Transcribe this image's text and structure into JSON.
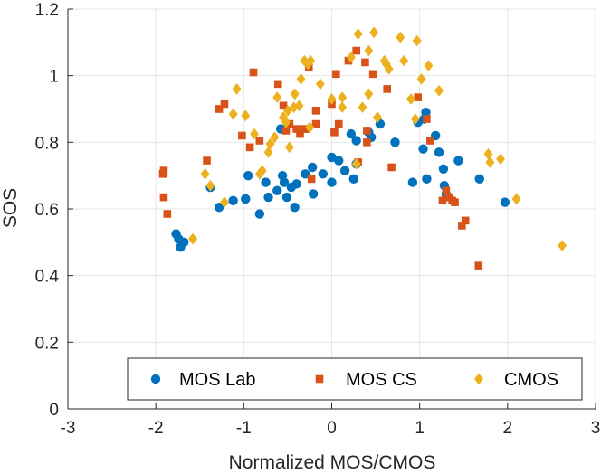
{
  "chart_data": {
    "type": "scatter",
    "title": "",
    "xlabel": "Normalized MOS/CMOS",
    "ylabel": "SOS",
    "xlim": [
      -3,
      3
    ],
    "ylim": [
      0,
      1.2
    ],
    "xticks": [
      -3,
      -2,
      -1,
      0,
      1,
      2,
      3
    ],
    "yticks": [
      0,
      0.2,
      0.4,
      0.6,
      0.8,
      1,
      1.2
    ],
    "xtick_labels": [
      "-3",
      "-2",
      "-1",
      "0",
      "1",
      "2",
      "3"
    ],
    "ytick_labels": [
      "0",
      "0.2",
      "0.4",
      "0.6",
      "0.8",
      "1",
      "1.2"
    ],
    "grid": true,
    "legend_position": "bottom",
    "series": [
      {
        "name": "MOS Lab",
        "marker": "circle",
        "color": "#0072BD",
        "points": [
          [
            -1.77,
            0.525
          ],
          [
            -1.74,
            0.51
          ],
          [
            -1.72,
            0.485
          ],
          [
            -1.68,
            0.5
          ],
          [
            -1.38,
            0.665
          ],
          [
            -1.28,
            0.605
          ],
          [
            -1.12,
            0.625
          ],
          [
            -0.98,
            0.63
          ],
          [
            -0.95,
            0.7
          ],
          [
            -0.82,
            0.585
          ],
          [
            -0.75,
            0.68
          ],
          [
            -0.72,
            0.635
          ],
          [
            -0.62,
            0.655
          ],
          [
            -0.56,
            0.7
          ],
          [
            -0.54,
            0.68
          ],
          [
            -0.51,
            0.635
          ],
          [
            -0.46,
            0.665
          ],
          [
            -0.42,
            0.605
          ],
          [
            -0.4,
            0.675
          ],
          [
            -0.3,
            0.705
          ],
          [
            -0.22,
            0.725
          ],
          [
            -0.21,
            0.645
          ],
          [
            -0.1,
            0.705
          ],
          [
            0.0,
            0.755
          ],
          [
            0.0,
            0.68
          ],
          [
            0.08,
            0.745
          ],
          [
            0.15,
            0.715
          ],
          [
            0.22,
            0.825
          ],
          [
            0.25,
            0.69
          ],
          [
            0.28,
            0.735
          ],
          [
            0.28,
            0.805
          ],
          [
            0.42,
            0.83
          ],
          [
            0.45,
            0.815
          ],
          [
            0.55,
            0.855
          ],
          [
            0.72,
            0.8
          ],
          [
            0.92,
            0.68
          ],
          [
            1.04,
            0.78
          ],
          [
            1.07,
            0.89
          ],
          [
            1.08,
            0.69
          ],
          [
            1.18,
            0.82
          ],
          [
            1.22,
            0.77
          ],
          [
            1.27,
            0.72
          ],
          [
            1.28,
            0.67
          ],
          [
            1.3,
            0.645
          ],
          [
            1.44,
            0.745
          ],
          [
            1.68,
            0.69
          ],
          [
            1.97,
            0.62
          ],
          [
            -0.58,
            0.84
          ],
          [
            0.98,
            0.86
          ],
          [
            1.05,
            0.87
          ]
        ]
      },
      {
        "name": "MOS CS",
        "marker": "square",
        "color": "#D95319",
        "points": [
          [
            -1.92,
            0.705
          ],
          [
            -1.91,
            0.715
          ],
          [
            -1.91,
            0.635
          ],
          [
            -1.87,
            0.585
          ],
          [
            -1.42,
            0.745
          ],
          [
            -1.28,
            0.9
          ],
          [
            -1.22,
            0.915
          ],
          [
            -1.02,
            0.82
          ],
          [
            -0.93,
            0.785
          ],
          [
            -0.89,
            1.01
          ],
          [
            -0.82,
            0.805
          ],
          [
            -0.61,
            0.975
          ],
          [
            -0.55,
            0.91
          ],
          [
            -0.52,
            0.835
          ],
          [
            -0.48,
            0.855
          ],
          [
            -0.36,
            0.825
          ],
          [
            -0.3,
            0.84
          ],
          [
            -0.26,
            1.025
          ],
          [
            -0.23,
            0.69
          ],
          [
            -0.18,
            0.855
          ],
          [
            -0.18,
            0.895
          ],
          [
            0.0,
            0.915
          ],
          [
            0.03,
            0.83
          ],
          [
            0.05,
            1.005
          ],
          [
            0.08,
            0.855
          ],
          [
            0.19,
            1.045
          ],
          [
            0.28,
            1.075
          ],
          [
            0.3,
            0.74
          ],
          [
            0.38,
            1.04
          ],
          [
            0.4,
            0.835
          ],
          [
            0.4,
            0.8
          ],
          [
            0.47,
            1.005
          ],
          [
            0.63,
            0.96
          ],
          [
            0.68,
            0.725
          ],
          [
            0.98,
            0.935
          ],
          [
            1.08,
            0.87
          ],
          [
            1.12,
            0.805
          ],
          [
            1.26,
            0.625
          ],
          [
            1.3,
            0.655
          ],
          [
            1.32,
            0.635
          ],
          [
            1.33,
            0.635
          ],
          [
            1.37,
            0.625
          ],
          [
            1.4,
            0.62
          ],
          [
            1.48,
            0.55
          ],
          [
            1.52,
            0.565
          ],
          [
            1.67,
            0.43
          ],
          [
            -0.4,
            0.84
          ]
        ]
      },
      {
        "name": "CMOS",
        "marker": "diamond",
        "color": "#EDB120",
        "points": [
          [
            -1.58,
            0.51
          ],
          [
            -1.44,
            0.705
          ],
          [
            -1.38,
            0.67
          ],
          [
            -1.22,
            0.62
          ],
          [
            -1.12,
            0.885
          ],
          [
            -1.08,
            0.96
          ],
          [
            -0.98,
            0.88
          ],
          [
            -0.88,
            0.825
          ],
          [
            -0.82,
            0.705
          ],
          [
            -0.79,
            0.715
          ],
          [
            -0.72,
            0.77
          ],
          [
            -0.7,
            0.795
          ],
          [
            -0.65,
            0.815
          ],
          [
            -0.62,
            0.935
          ],
          [
            -0.55,
            0.875
          ],
          [
            -0.52,
            0.86
          ],
          [
            -0.5,
            0.895
          ],
          [
            -0.48,
            0.785
          ],
          [
            -0.43,
            0.905
          ],
          [
            -0.42,
            0.945
          ],
          [
            -0.37,
            0.91
          ],
          [
            -0.35,
            0.99
          ],
          [
            -0.31,
            1.045
          ],
          [
            -0.27,
            1.035
          ],
          [
            -0.25,
            0.845
          ],
          [
            -0.24,
            1.045
          ],
          [
            -0.13,
            0.975
          ],
          [
            0.0,
            0.93
          ],
          [
            0.12,
            0.905
          ],
          [
            0.12,
            0.935
          ],
          [
            0.22,
            1.055
          ],
          [
            0.28,
            0.735
          ],
          [
            0.3,
            1.125
          ],
          [
            0.35,
            0.905
          ],
          [
            0.42,
            1.075
          ],
          [
            0.48,
            1.13
          ],
          [
            0.52,
            0.875
          ],
          [
            0.6,
            1.045
          ],
          [
            0.62,
            1.035
          ],
          [
            0.65,
            1.02
          ],
          [
            0.78,
            1.115
          ],
          [
            0.82,
            1.045
          ],
          [
            0.9,
            0.93
          ],
          [
            0.95,
            0.87
          ],
          [
            0.97,
            1.105
          ],
          [
            1.02,
            0.99
          ],
          [
            1.1,
            1.03
          ],
          [
            1.22,
            0.955
          ],
          [
            1.78,
            0.765
          ],
          [
            1.8,
            0.74
          ],
          [
            1.92,
            0.75
          ],
          [
            2.1,
            0.63
          ],
          [
            2.62,
            0.49
          ],
          [
            0.42,
            0.945
          ]
        ]
      }
    ]
  }
}
